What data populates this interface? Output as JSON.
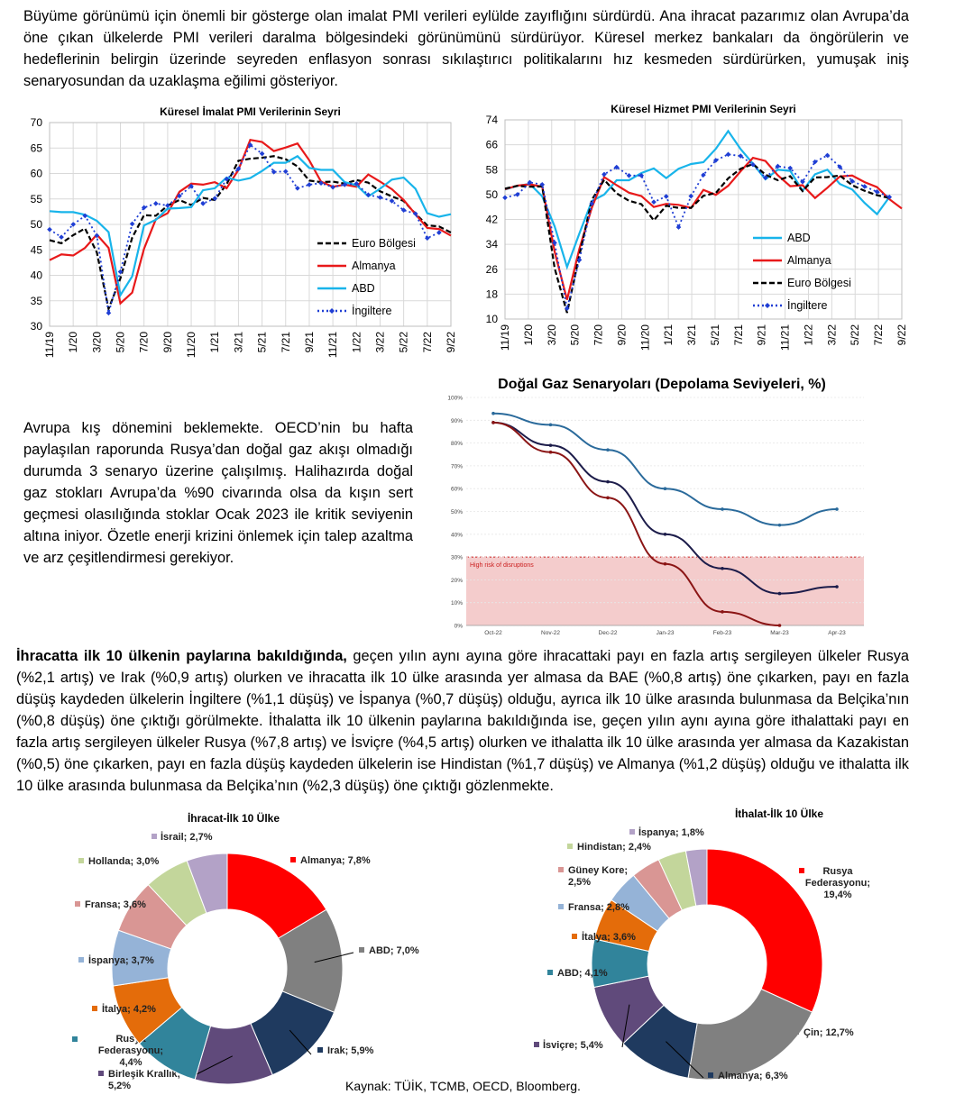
{
  "intro_text": "Büyüme görünümü için önemli bir gösterge olan imalat PMI verileri eylülde zayıflığını sürdürdü. Ana ihracat pazarımız olan Avrupa’da öne çıkan ülkelerde PMI verileri daralma bölgesindeki görünümünü sürdürüyor. Küresel merkez bankaları da öngörülerin ve hedeflerinin belirgin üzerinde seyreden enflasyon sonrası sıkılaştırıcı politikalarını hız kesmeden sürdürürken, yumuşak iniş senaryosundan da uzaklaşma eğilimi gösteriyor.",
  "europe_text": "Avrupa kış dönemini beklemekte. OECD’nin bu hafta paylaşılan raporunda Rusya’dan doğal gaz akışı olmadığı durumda 3 senaryo üzerine çalışılmış. Halihazırda doğal gaz stokları Avrupa’da %90 civarında olsa da kışın sert geçmesi olasılığında stoklar Ocak 2023 ile kritik seviyenin altına iniyor. Özetle enerji krizini önlemek için talep azaltma ve arz çeşitlendirmesi gerekiyor.",
  "trade_text_bold": "İhracatta ilk 10 ülkenin paylarına bakıldığında,",
  "trade_text": " geçen yılın aynı ayına göre ihracattaki payı en fazla artış sergileyen ülkeler Rusya (%2,1 artış) ve Irak (%0,9 artış) olurken ve ihracatta ilk 10 ülke arasında yer almasa da BAE (%0,8 artış) öne çıkarken, payı en fazla düşüş kaydeden ülkelerin İngiltere (%1,1 düşüş) ve İspanya (%0,7 düşüş) olduğu, ayrıca ilk 10 ülke arasında bulunmasa da Belçika’nın (%0,8 düşüş) öne çıktığı görülmekte. İthalatta ilk 10 ülkenin paylarına bakıldığında ise, geçen yılın aynı ayına göre ithalattaki payı en fazla artış sergileyen ülkeler Rusya (%7,8 artış) ve İsviçre (%4,5 artış) olurken ve ithalatta ilk 10 ülke arasında yer almasa da Kazakistan (%0,5) öne çıkarken, payı en fazla düşüş kaydeden ülkelerin ise Hindistan (%1,7 düşüş) ve Almanya (%1,2 düşüş) olduğu ve ithalatta ilk 10 ülke arasında bulunmasa da Belçika’nın (%2,3 düşüş) öne çıktığı gözlenmekte.",
  "source": "Kaynak: TÜİK, TCMB, OECD, Bloomberg.",
  "chart_data": [
    {
      "type": "line",
      "title": "Küresel İmalat PMI Verilerinin Seyri",
      "ylim": [
        30,
        70
      ],
      "yticks": [
        30,
        35,
        40,
        45,
        50,
        55,
        60,
        65,
        70
      ],
      "xticks": [
        "11/19",
        "1/20",
        "3/20",
        "5/20",
        "7/20",
        "9/20",
        "11/20",
        "1/21",
        "3/21",
        "5/21",
        "7/21",
        "9/21",
        "11/21",
        "1/22",
        "3/22",
        "5/22",
        "7/22",
        "9/22"
      ],
      "grid": true,
      "legend_position": "bottom-right",
      "series": [
        {
          "name": "Euro Bölgesi",
          "color": "#000000",
          "style": "dashed",
          "values": [
            46.9,
            46.3,
            47.9,
            49.2,
            44.5,
            33.4,
            39.4,
            47.4,
            51.8,
            51.7,
            53.7,
            54.8,
            53.8,
            55.2,
            54.8,
            57.9,
            62.5,
            62.9,
            63.1,
            63.4,
            62.8,
            61.4,
            58.6,
            58.3,
            58.4,
            58.0,
            58.7,
            58.2,
            56.5,
            55.5,
            54.6,
            52.1,
            49.8,
            49.6,
            48.4
          ]
        },
        {
          "name": "Almanya",
          "color": "#e8191a",
          "style": "solid",
          "values": [
            43.0,
            44.1,
            43.9,
            45.4,
            48.0,
            45.4,
            34.5,
            36.6,
            45.2,
            51.0,
            52.2,
            56.4,
            58.0,
            57.8,
            58.3,
            57.1,
            60.7,
            66.6,
            66.2,
            64.4,
            65.1,
            65.9,
            62.6,
            58.4,
            57.4,
            57.8,
            57.4,
            59.8,
            58.4,
            56.9,
            54.8,
            52.0,
            49.3,
            49.1,
            47.8
          ]
        },
        {
          "name": "ABD",
          "color": "#18b4ea",
          "style": "solid",
          "values": [
            52.6,
            52.4,
            52.4,
            51.9,
            50.7,
            48.5,
            36.1,
            39.8,
            49.8,
            50.9,
            53.1,
            53.2,
            53.4,
            56.7,
            57.1,
            59.2,
            58.6,
            59.1,
            60.5,
            62.1,
            62.1,
            63.4,
            61.1,
            60.7,
            60.7,
            58.3,
            57.7,
            55.5,
            57.0,
            58.8,
            59.2,
            57.0,
            52.2,
            51.5,
            52.0
          ]
        },
        {
          "name": "İngiltere",
          "color": "#1f3ed4",
          "style": "dotted-diamond",
          "values": [
            49.0,
            47.5,
            50.0,
            51.7,
            47.8,
            32.6,
            40.7,
            50.1,
            53.3,
            54.1,
            53.7,
            55.6,
            57.5,
            54.1,
            55.1,
            58.9,
            60.9,
            65.6,
            63.9,
            60.3,
            60.4,
            57.1,
            57.8,
            58.1,
            57.3,
            57.8,
            58.0,
            55.8,
            55.3,
            54.6,
            52.8,
            52.1,
            47.3,
            48.4
          ]
        }
      ]
    },
    {
      "type": "line",
      "title": "Küresel Hizmet PMI Verilerinin Seyri",
      "ylim": [
        10,
        74
      ],
      "yticks": [
        10,
        18,
        26,
        34,
        42,
        50,
        58,
        66,
        74
      ],
      "xticks": [
        "11/19",
        "1/20",
        "3/20",
        "5/20",
        "7/20",
        "9/20",
        "11/20",
        "1/21",
        "3/21",
        "5/21",
        "7/21",
        "9/21",
        "11/21",
        "1/22",
        "3/22",
        "5/22",
        "7/22",
        "9/22"
      ],
      "grid": true,
      "legend_position": "bottom-right",
      "series": [
        {
          "name": "ABD",
          "color": "#18b4ea",
          "style": "solid",
          "values": [
            51.6,
            52.8,
            53.4,
            49.4,
            39.8,
            26.7,
            37.5,
            47.9,
            50.0,
            54.6,
            54.6,
            56.9,
            58.4,
            55.3,
            58.3,
            59.8,
            60.4,
            64.7,
            70.4,
            64.6,
            59.9,
            54.9,
            58.0,
            57.6,
            51.2,
            56.5,
            58.0,
            53.4,
            51.6,
            47.3,
            43.7,
            49.2
          ]
        },
        {
          "name": "Almanya",
          "color": "#e8191a",
          "style": "solid",
          "values": [
            51.7,
            52.9,
            53.3,
            52.5,
            31.7,
            16.2,
            32.6,
            45.8,
            55.6,
            53.0,
            50.6,
            49.5,
            46.0,
            47.0,
            46.7,
            45.7,
            51.5,
            49.9,
            52.8,
            57.5,
            61.8,
            60.8,
            56.2,
            52.7,
            53.0,
            48.9,
            52.2,
            55.8,
            56.1,
            54.0,
            52.4,
            48.5,
            45.5
          ]
        },
        {
          "name": "Euro Bölgesi",
          "color": "#000000",
          "style": "dashed",
          "values": [
            51.9,
            52.8,
            52.5,
            52.6,
            26.4,
            12.0,
            30.5,
            48.3,
            54.7,
            50.4,
            48.0,
            46.9,
            41.7,
            46.4,
            45.7,
            45.7,
            49.6,
            50.5,
            55.2,
            58.3,
            59.8,
            56.4,
            54.6,
            55.9,
            51.1,
            55.5,
            55.6,
            56.1,
            53.0,
            51.2,
            49.8,
            48.9
          ]
        },
        {
          "name": "İngiltere",
          "color": "#1f3ed4",
          "style": "dotted-diamond",
          "values": [
            49.0,
            50.0,
            53.9,
            53.2,
            34.5,
            13.4,
            29.0,
            47.1,
            56.5,
            58.8,
            56.1,
            56.1,
            47.6,
            49.4,
            39.5,
            49.5,
            56.3,
            61.0,
            62.9,
            62.4,
            59.6,
            55.4,
            59.1,
            58.5,
            54.1,
            60.5,
            62.6,
            58.9,
            54.3,
            52.6,
            50.9,
            49.2
          ]
        }
      ]
    },
    {
      "type": "line",
      "title": "Doğal Gaz Senaryoları (Depolama Seviyeleri, %)",
      "ylim": [
        0,
        100
      ],
      "yticks": [
        "0%",
        "10%",
        "20%",
        "30%",
        "40%",
        "50%",
        "60%",
        "70%",
        "80%",
        "90%",
        "100%"
      ],
      "categories": [
        "Oct-22",
        "Nov-22",
        "Dec-22",
        "Jan-23",
        "Feb-23",
        "Mar-23",
        "Apr-23"
      ],
      "annotation": "High risk of disruptions",
      "risk_threshold": 30,
      "series": [
        {
          "color": "#2a6a9b",
          "values": [
            93,
            88,
            77,
            60,
            51,
            44,
            51
          ]
        },
        {
          "color": "#1c1c4a",
          "values": [
            89,
            79,
            63,
            40,
            25,
            14,
            17
          ]
        },
        {
          "color": "#8b1515",
          "values": [
            89,
            76,
            56,
            27,
            6,
            0,
            null
          ]
        }
      ]
    },
    {
      "type": "pie",
      "title": "İhracat-İlk 10 Ülke",
      "slices": [
        {
          "label": "Almanya",
          "value": 7.8,
          "text": "Almanya; 7,8%",
          "color": "#ff0000"
        },
        {
          "label": "ABD",
          "value": 7.0,
          "text": "ABD; 7,0%",
          "color": "#808080"
        },
        {
          "label": "Irak",
          "value": 5.9,
          "text": "Irak; 5,9%",
          "color": "#1f3a5f"
        },
        {
          "label": "Birleşik Krallık",
          "value": 5.2,
          "text": "Birleşik Krallık; 5,2%",
          "color": "#604a7b"
        },
        {
          "label": "Rusya Federasyonu",
          "value": 4.4,
          "text": "Rusya Federasyonu; 4,4%",
          "color": "#31849b"
        },
        {
          "label": "İtalya",
          "value": 4.2,
          "text": "İtalya; 4,2%",
          "color": "#e46c0a"
        },
        {
          "label": "İspanya",
          "value": 3.7,
          "text": "İspanya; 3,7%",
          "color": "#95b3d7"
        },
        {
          "label": "Fransa",
          "value": 3.6,
          "text": "Fransa; 3,6%",
          "color": "#d99694"
        },
        {
          "label": "Hollanda",
          "value": 3.0,
          "text": "Hollanda; 3,0%",
          "color": "#c3d69b"
        },
        {
          "label": "İsrail",
          "value": 2.7,
          "text": "İsrail; 2,7%",
          "color": "#b3a2c7"
        }
      ]
    },
    {
      "type": "pie",
      "title": "İthalat-İlk 10 Ülke",
      "slices": [
        {
          "label": "Rusya Federasyonu",
          "value": 19.4,
          "text": "Rusya Federasyonu; 19,4%",
          "color": "#ff0000"
        },
        {
          "label": "Çin",
          "value": 12.7,
          "text": "Çin; 12,7%",
          "color": "#808080"
        },
        {
          "label": "Almanya",
          "value": 6.3,
          "text": "Almanya; 6,3%",
          "color": "#1f3a5f"
        },
        {
          "label": "İsviçre",
          "value": 5.4,
          "text": "İsviçre; 5,4%",
          "color": "#604a7b"
        },
        {
          "label": "ABD",
          "value": 4.1,
          "text": "ABD; 4,1%",
          "color": "#31849b"
        },
        {
          "label": "İtalya",
          "value": 3.6,
          "text": "İtalya; 3,6%",
          "color": "#e46c0a"
        },
        {
          "label": "Fransa",
          "value": 2.8,
          "text": "Fransa; 2,8%",
          "color": "#95b3d7"
        },
        {
          "label": "Güney Kore",
          "value": 2.5,
          "text": "Güney Kore; 2,5%",
          "color": "#d99694"
        },
        {
          "label": "Hindistan",
          "value": 2.4,
          "text": "Hindistan; 2,4%",
          "color": "#c3d69b"
        },
        {
          "label": "İspanya",
          "value": 1.8,
          "text": "İspanya; 1,8%",
          "color": "#b3a2c7"
        }
      ]
    }
  ]
}
